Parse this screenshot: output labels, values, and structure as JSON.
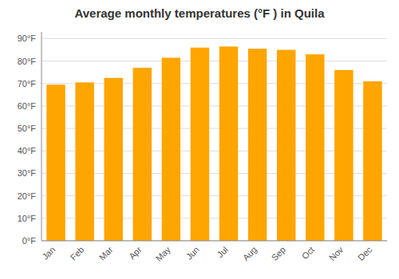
{
  "chart_data": {
    "type": "bar",
    "title": "Average monthly temperatures (°F ) in Quila",
    "categories": [
      "Jan",
      "Feb",
      "Mar",
      "Apr",
      "May",
      "Jun",
      "Jul",
      "Aug",
      "Sep",
      "Oct",
      "Nov",
      "Dec"
    ],
    "values": [
      69.5,
      70.5,
      72.5,
      77.0,
      81.5,
      86.0,
      86.5,
      85.5,
      85.0,
      83.0,
      76.0,
      71.0
    ],
    "color": "#FFA500",
    "ylim": [
      0,
      93
    ],
    "yticks": [
      {
        "value": 0,
        "label": "0°F"
      },
      {
        "value": 10,
        "label": "10°F"
      },
      {
        "value": 20,
        "label": "20°F"
      },
      {
        "value": 30,
        "label": "30°F"
      },
      {
        "value": 40,
        "label": "40°F"
      },
      {
        "value": 50,
        "label": "50°F"
      },
      {
        "value": 60,
        "label": "60°F"
      },
      {
        "value": 70,
        "label": "70°F"
      },
      {
        "value": 80,
        "label": "80°F"
      },
      {
        "value": 90,
        "label": "90°F"
      }
    ],
    "grid": true
  }
}
